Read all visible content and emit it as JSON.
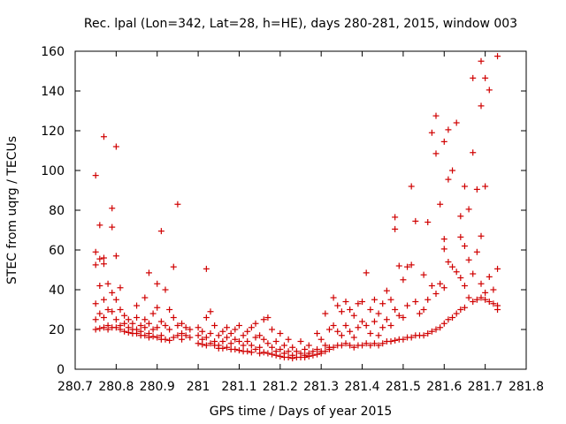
{
  "chart_data": {
    "type": "scatter",
    "title": "Rec. lpal (Lon=342, Lat=28, h=HE), days 280-281, 2015, window 003",
    "xlabel": "GPS time / Days of year 2015",
    "ylabel": "STEC from uqrg / TECUs",
    "xlim": [
      280.7,
      281.8
    ],
    "ylim": [
      0,
      160
    ],
    "xticks": [
      "280.7",
      "280.8",
      "280.9",
      "281",
      "281.1",
      "281.2",
      "281.3",
      "281.4",
      "281.5",
      "281.6",
      "281.7",
      "281.8"
    ],
    "yticks": [
      "0",
      "20",
      "40",
      "60",
      "80",
      "100",
      "120",
      "140",
      "160"
    ],
    "grid": false,
    "legend": "none",
    "marker": "plus",
    "color": "#d00000",
    "points": [
      [
        280.75,
        97.5
      ],
      [
        280.75,
        59
      ],
      [
        280.75,
        52.5
      ],
      [
        280.75,
        33
      ],
      [
        280.75,
        25
      ],
      [
        280.75,
        20
      ],
      [
        280.76,
        72.5
      ],
      [
        280.76,
        55.5
      ],
      [
        280.76,
        42
      ],
      [
        280.76,
        28
      ],
      [
        280.76,
        20.5
      ],
      [
        280.77,
        117
      ],
      [
        280.77,
        56
      ],
      [
        280.77,
        53
      ],
      [
        280.77,
        35
      ],
      [
        280.77,
        26
      ],
      [
        280.77,
        21
      ],
      [
        280.78,
        43
      ],
      [
        280.78,
        30
      ],
      [
        280.78,
        22
      ],
      [
        280.78,
        20
      ],
      [
        280.79,
        81
      ],
      [
        280.79,
        71.5
      ],
      [
        280.79,
        38.5
      ],
      [
        280.79,
        29
      ],
      [
        280.79,
        21
      ],
      [
        280.8,
        112
      ],
      [
        280.8,
        57
      ],
      [
        280.8,
        35
      ],
      [
        280.8,
        25
      ],
      [
        280.8,
        21
      ],
      [
        280.81,
        41
      ],
      [
        280.81,
        30
      ],
      [
        280.81,
        22
      ],
      [
        280.81,
        20
      ],
      [
        280.82,
        27
      ],
      [
        280.82,
        23
      ],
      [
        280.82,
        19
      ],
      [
        280.83,
        25
      ],
      [
        280.83,
        21
      ],
      [
        280.83,
        18.5
      ],
      [
        280.84,
        23
      ],
      [
        280.84,
        20
      ],
      [
        280.84,
        18
      ],
      [
        280.85,
        32
      ],
      [
        280.85,
        26
      ],
      [
        280.85,
        20
      ],
      [
        280.85,
        18
      ],
      [
        280.86,
        22
      ],
      [
        280.86,
        19
      ],
      [
        280.86,
        17
      ],
      [
        280.87,
        36
      ],
      [
        280.87,
        25
      ],
      [
        280.87,
        21
      ],
      [
        280.87,
        17
      ],
      [
        280.88,
        48.5
      ],
      [
        280.88,
        23
      ],
      [
        280.88,
        18
      ],
      [
        280.88,
        16
      ],
      [
        280.89,
        28
      ],
      [
        280.89,
        20
      ],
      [
        280.89,
        16.5
      ],
      [
        280.9,
        43
      ],
      [
        280.9,
        31
      ],
      [
        280.9,
        21
      ],
      [
        280.9,
        16
      ],
      [
        280.91,
        69.5
      ],
      [
        280.91,
        24
      ],
      [
        280.91,
        17
      ],
      [
        280.91,
        15
      ],
      [
        280.92,
        40
      ],
      [
        280.92,
        22
      ],
      [
        280.92,
        15
      ],
      [
        280.93,
        30
      ],
      [
        280.93,
        20
      ],
      [
        280.93,
        14.5
      ],
      [
        280.94,
        51.5
      ],
      [
        280.94,
        26
      ],
      [
        280.94,
        16
      ],
      [
        280.95,
        83
      ],
      [
        280.95,
        22
      ],
      [
        280.95,
        17
      ],
      [
        280.96,
        23
      ],
      [
        280.96,
        18
      ],
      [
        280.96,
        15
      ],
      [
        280.97,
        21
      ],
      [
        280.97,
        17
      ],
      [
        280.98,
        20
      ],
      [
        280.98,
        16
      ],
      [
        281.0,
        21
      ],
      [
        281.0,
        17
      ],
      [
        281.0,
        13
      ],
      [
        281.01,
        19
      ],
      [
        281.01,
        15
      ],
      [
        281.01,
        12.5
      ],
      [
        281.02,
        50.5
      ],
      [
        281.02,
        26
      ],
      [
        281.02,
        16
      ],
      [
        281.02,
        12
      ],
      [
        281.03,
        29
      ],
      [
        281.03,
        18
      ],
      [
        281.03,
        13
      ],
      [
        281.04,
        22
      ],
      [
        281.04,
        14
      ],
      [
        281.04,
        12
      ],
      [
        281.05,
        17
      ],
      [
        281.05,
        12
      ],
      [
        281.05,
        10.5
      ],
      [
        281.06,
        19
      ],
      [
        281.06,
        14
      ],
      [
        281.06,
        10.5
      ],
      [
        281.07,
        21
      ],
      [
        281.07,
        16
      ],
      [
        281.07,
        11
      ],
      [
        281.08,
        18
      ],
      [
        281.08,
        13
      ],
      [
        281.08,
        10
      ],
      [
        281.09,
        20
      ],
      [
        281.09,
        15
      ],
      [
        281.09,
        10
      ],
      [
        281.1,
        22
      ],
      [
        281.1,
        14
      ],
      [
        281.1,
        9.5
      ],
      [
        281.11,
        17
      ],
      [
        281.11,
        12
      ],
      [
        281.11,
        9
      ],
      [
        281.12,
        19
      ],
      [
        281.12,
        14
      ],
      [
        281.12,
        9
      ],
      [
        281.13,
        21
      ],
      [
        281.13,
        12
      ],
      [
        281.13,
        8.5
      ],
      [
        281.14,
        23
      ],
      [
        281.14,
        16
      ],
      [
        281.14,
        10
      ],
      [
        281.15,
        17
      ],
      [
        281.15,
        11
      ],
      [
        281.15,
        8
      ],
      [
        281.16,
        25
      ],
      [
        281.16,
        15
      ],
      [
        281.16,
        8.5
      ],
      [
        281.17,
        26
      ],
      [
        281.17,
        13
      ],
      [
        281.17,
        8
      ],
      [
        281.18,
        20
      ],
      [
        281.18,
        11
      ],
      [
        281.18,
        7.5
      ],
      [
        281.19,
        14
      ],
      [
        281.19,
        9
      ],
      [
        281.19,
        7
      ],
      [
        281.2,
        18
      ],
      [
        281.2,
        10
      ],
      [
        281.2,
        6.5
      ],
      [
        281.21,
        12
      ],
      [
        281.21,
        8
      ],
      [
        281.21,
        6
      ],
      [
        281.22,
        15
      ],
      [
        281.22,
        9
      ],
      [
        281.22,
        6
      ],
      [
        281.23,
        11
      ],
      [
        281.23,
        7
      ],
      [
        281.23,
        5.5
      ],
      [
        281.24,
        9
      ],
      [
        281.24,
        6
      ],
      [
        281.25,
        14
      ],
      [
        281.25,
        8
      ],
      [
        281.25,
        6
      ],
      [
        281.26,
        10
      ],
      [
        281.26,
        7
      ],
      [
        281.26,
        6
      ],
      [
        281.27,
        12
      ],
      [
        281.27,
        8
      ],
      [
        281.27,
        6.5
      ],
      [
        281.28,
        9
      ],
      [
        281.28,
        7
      ],
      [
        281.29,
        18
      ],
      [
        281.29,
        10
      ],
      [
        281.29,
        7.5
      ],
      [
        281.3,
        15
      ],
      [
        281.3,
        9
      ],
      [
        281.3,
        8
      ],
      [
        281.31,
        28
      ],
      [
        281.31,
        12
      ],
      [
        281.31,
        9
      ],
      [
        281.32,
        20
      ],
      [
        281.32,
        11
      ],
      [
        281.32,
        10
      ],
      [
        281.33,
        36
      ],
      [
        281.33,
        22
      ],
      [
        281.33,
        11
      ],
      [
        281.34,
        32
      ],
      [
        281.34,
        19
      ],
      [
        281.34,
        12
      ],
      [
        281.35,
        29
      ],
      [
        281.35,
        17
      ],
      [
        281.35,
        12
      ],
      [
        281.36,
        34
      ],
      [
        281.36,
        22
      ],
      [
        281.36,
        13
      ],
      [
        281.37,
        30
      ],
      [
        281.37,
        19
      ],
      [
        281.37,
        12
      ],
      [
        281.38,
        27
      ],
      [
        281.38,
        16
      ],
      [
        281.38,
        11
      ],
      [
        281.39,
        33
      ],
      [
        281.39,
        21
      ],
      [
        281.39,
        12
      ],
      [
        281.4,
        34
      ],
      [
        281.4,
        24
      ],
      [
        281.4,
        12
      ],
      [
        281.41,
        48.5
      ],
      [
        281.41,
        22
      ],
      [
        281.41,
        13
      ],
      [
        281.42,
        30
      ],
      [
        281.42,
        18
      ],
      [
        281.42,
        12
      ],
      [
        281.43,
        35
      ],
      [
        281.43,
        24
      ],
      [
        281.43,
        13
      ],
      [
        281.44,
        28
      ],
      [
        281.44,
        17
      ],
      [
        281.44,
        12
      ],
      [
        281.45,
        33
      ],
      [
        281.45,
        21
      ],
      [
        281.45,
        13
      ],
      [
        281.46,
        39.5
      ],
      [
        281.46,
        25
      ],
      [
        281.46,
        14
      ],
      [
        281.47,
        35
      ],
      [
        281.47,
        22
      ],
      [
        281.47,
        14
      ],
      [
        281.48,
        76.5
      ],
      [
        281.48,
        70.5
      ],
      [
        281.48,
        30
      ],
      [
        281.48,
        14.5
      ],
      [
        281.49,
        52
      ],
      [
        281.49,
        27
      ],
      [
        281.49,
        15
      ],
      [
        281.5,
        45
      ],
      [
        281.5,
        26
      ],
      [
        281.5,
        15
      ],
      [
        281.51,
        51.5
      ],
      [
        281.51,
        32
      ],
      [
        281.51,
        16
      ],
      [
        281.52,
        92
      ],
      [
        281.52,
        52.5
      ],
      [
        281.52,
        16
      ],
      [
        281.53,
        74.5
      ],
      [
        281.53,
        34
      ],
      [
        281.53,
        17
      ],
      [
        281.54,
        28
      ],
      [
        281.54,
        17
      ],
      [
        281.55,
        47.5
      ],
      [
        281.55,
        30
      ],
      [
        281.55,
        17
      ],
      [
        281.56,
        74
      ],
      [
        281.56,
        35
      ],
      [
        281.56,
        18
      ],
      [
        281.57,
        119
      ],
      [
        281.57,
        42
      ],
      [
        281.57,
        19
      ],
      [
        281.58,
        127.5
      ],
      [
        281.58,
        108.5
      ],
      [
        281.58,
        38
      ],
      [
        281.58,
        20
      ],
      [
        281.59,
        83
      ],
      [
        281.59,
        43
      ],
      [
        281.59,
        21
      ],
      [
        281.6,
        114.5
      ],
      [
        281.6,
        65.5
      ],
      [
        281.6,
        60.5
      ],
      [
        281.6,
        41
      ],
      [
        281.6,
        23
      ],
      [
        281.61,
        120.5
      ],
      [
        281.61,
        95.5
      ],
      [
        281.61,
        54
      ],
      [
        281.61,
        25
      ],
      [
        281.62,
        100
      ],
      [
        281.62,
        51.5
      ],
      [
        281.62,
        26
      ],
      [
        281.63,
        124
      ],
      [
        281.63,
        49
      ],
      [
        281.63,
        28
      ],
      [
        281.64,
        77
      ],
      [
        281.64,
        66.5
      ],
      [
        281.64,
        46
      ],
      [
        281.64,
        30
      ],
      [
        281.65,
        92
      ],
      [
        281.65,
        62
      ],
      [
        281.65,
        42
      ],
      [
        281.65,
        31
      ],
      [
        281.66,
        80.5
      ],
      [
        281.66,
        55
      ],
      [
        281.66,
        36
      ],
      [
        281.67,
        146.5
      ],
      [
        281.67,
        109
      ],
      [
        281.67,
        48
      ],
      [
        281.67,
        34
      ],
      [
        281.68,
        90.5
      ],
      [
        281.68,
        59
      ],
      [
        281.68,
        35
      ],
      [
        281.69,
        155
      ],
      [
        281.69,
        132.5
      ],
      [
        281.69,
        67
      ],
      [
        281.69,
        43
      ],
      [
        281.69,
        36
      ],
      [
        281.7,
        146.5
      ],
      [
        281.7,
        92
      ],
      [
        281.7,
        38.5
      ],
      [
        281.7,
        35
      ],
      [
        281.71,
        140.5
      ],
      [
        281.71,
        46.5
      ],
      [
        281.71,
        34
      ],
      [
        281.72,
        40
      ],
      [
        281.72,
        33
      ],
      [
        281.73,
        157.5
      ],
      [
        281.73,
        50.5
      ],
      [
        281.73,
        32
      ],
      [
        281.73,
        30
      ]
    ]
  }
}
